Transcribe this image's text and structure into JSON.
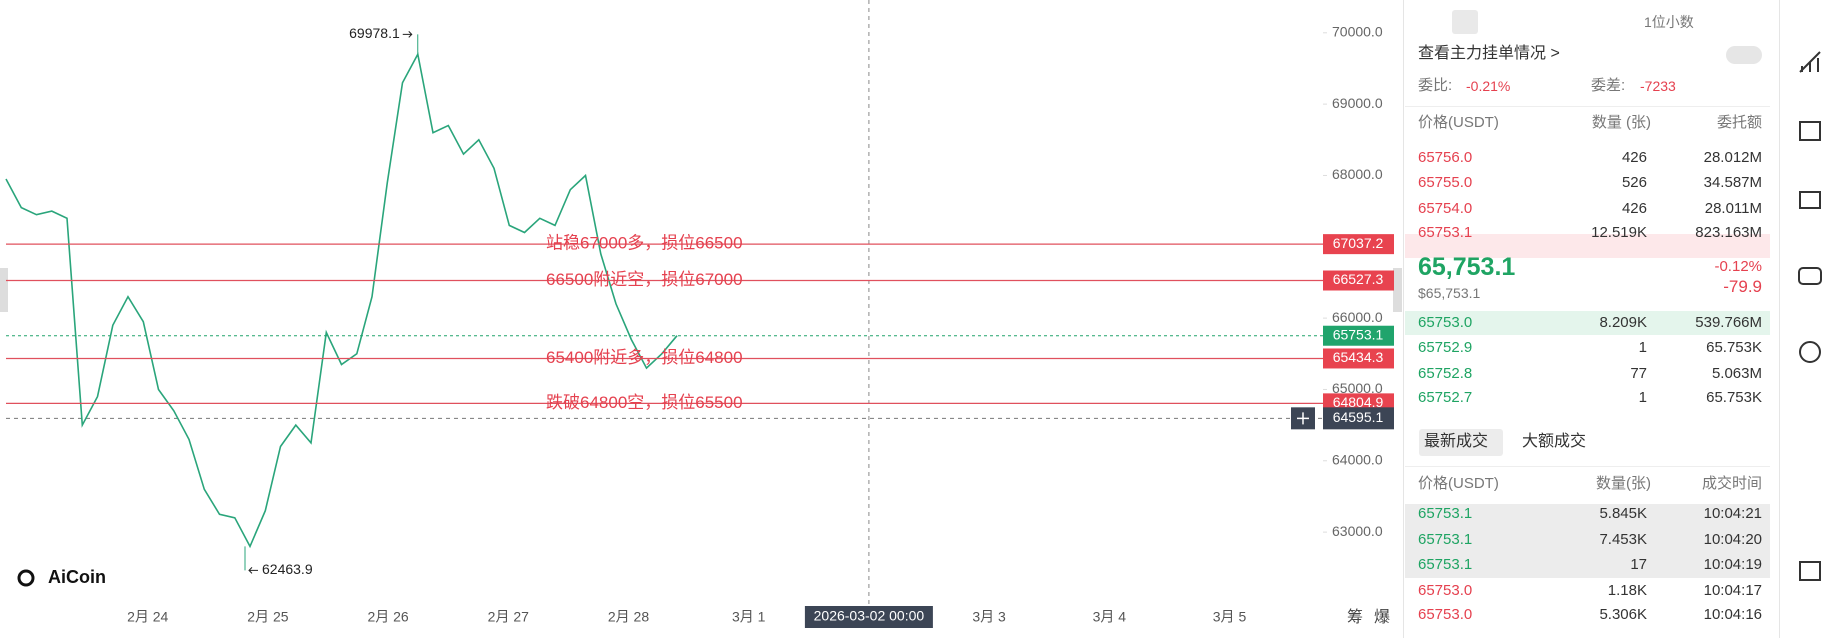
{
  "chart": {
    "yticks": [
      {
        "value": 70000,
        "label": "70000.0"
      },
      {
        "value": 69000,
        "label": "69000.0"
      },
      {
        "value": 68000,
        "label": "68000.0"
      },
      {
        "value": 67000,
        "label": "67000.0"
      },
      {
        "value": 66000,
        "label": "66000.0"
      },
      {
        "value": 65000,
        "label": "65000.0"
      },
      {
        "value": 64000,
        "label": "64000.0"
      },
      {
        "value": 63000,
        "label": "63000.0"
      }
    ],
    "dates": [
      "2月 24",
      "2月 25",
      "2月 26",
      "2月 27",
      "2月 28",
      "3月 1",
      null,
      "3月 3",
      "3月 4",
      "3月 5"
    ],
    "crosshair": {
      "date": "2026-03-02 00:00",
      "price": 64595.1
    },
    "current_price": 65753.1,
    "levels": [
      {
        "price": 67037.2,
        "note": "站稳67000多，损位66500"
      },
      {
        "price": 66527.3,
        "note": "66500附近空，损位67000"
      },
      {
        "price": 65434.3,
        "note": "65400附近多，损位64800"
      },
      {
        "price": 64804.9,
        "note": "跌破64800空，损位65500"
      }
    ],
    "high": 69978.1,
    "low": 62463.9,
    "price_path": [
      67950,
      67550,
      67450,
      67500,
      67400,
      64500,
      64900,
      65900,
      66300,
      65950,
      65000,
      64700,
      64300,
      63600,
      63250,
      63200,
      62800,
      63300,
      64200,
      64500,
      64250,
      65800,
      65350,
      65500,
      66300,
      67900,
      69300,
      69700,
      68600,
      68700,
      68300,
      68500,
      68100,
      67300,
      67200,
      67400,
      67300,
      67800,
      68000,
      66900,
      66200,
      65700,
      65300,
      65500,
      65753.1
    ],
    "logo": "AiCoin",
    "bottom_tabs": [
      "筹",
      "爆"
    ]
  },
  "orderbook": {
    "precision": "1位小数",
    "link": "查看主力挂单情况 >",
    "ratio_label": "委比:",
    "ratio": "-0.21%",
    "diff_label": "委差:",
    "diff": "-7233",
    "headers": [
      "价格(USDT)",
      "数量 (张)",
      "委托额"
    ],
    "asks": [
      [
        "65756.0",
        "426",
        "28.012M"
      ],
      [
        "65755.0",
        "526",
        "34.587M"
      ],
      [
        "65754.0",
        "426",
        "28.011M"
      ],
      [
        "65753.1",
        "12.519K",
        "823.163M"
      ]
    ],
    "last": "65,753.1",
    "last_usd": "$65,753.1",
    "change_pct": "-0.12%",
    "change": "-79.9",
    "bids": [
      [
        "65753.0",
        "8.209K",
        "539.766M"
      ],
      [
        "65752.9",
        "1",
        "65.753K"
      ],
      [
        "65752.8",
        "77",
        "5.063M"
      ],
      [
        "65752.7",
        "1",
        "65.753K"
      ]
    ]
  },
  "trades": {
    "tabs": [
      "最新成交",
      "大额成交"
    ],
    "headers": [
      "价格(USDT)",
      "数量(张)",
      "成交时间"
    ],
    "rows": [
      [
        "65753.1",
        "5.845K",
        "10:04:21"
      ],
      [
        "65753.1",
        "7.453K",
        "10:04:20"
      ],
      [
        "65753.1",
        "17",
        "10:04:19"
      ],
      [
        "65753.0",
        "1.18K",
        "10:04:17"
      ],
      [
        "65753.0",
        "5.306K",
        "10:04:16"
      ]
    ]
  }
}
